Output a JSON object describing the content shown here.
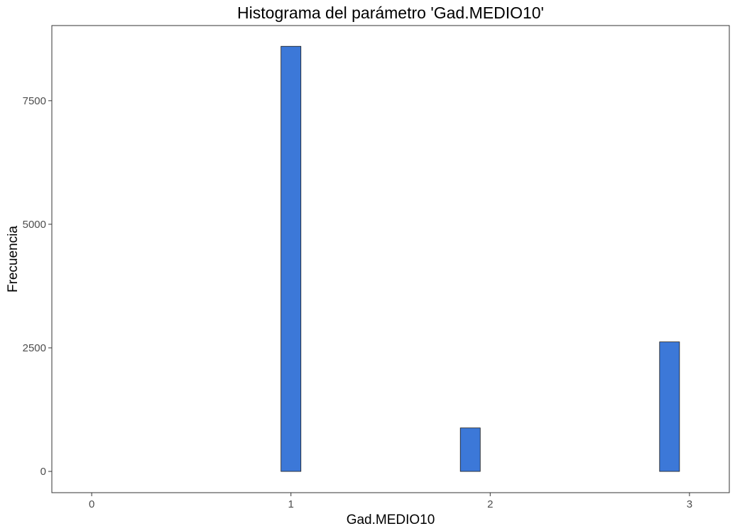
{
  "chart_data": {
    "type": "bar",
    "title": "Histograma del parámetro 'Gad.MEDIO10'",
    "xlabel": "Gad.MEDIO10",
    "ylabel": "Frecuencia",
    "x_ticks": [
      "0",
      "1",
      "2",
      "3"
    ],
    "y_ticks": [
      "0",
      "2500",
      "5000",
      "7500"
    ],
    "xlim": [
      -0.2,
      3.2
    ],
    "ylim": [
      -430,
      9020
    ],
    "bin_width": 0.1,
    "bins": [
      {
        "center": 0.0,
        "count": 0
      },
      {
        "center": 0.1,
        "count": 0
      },
      {
        "center": 0.2,
        "count": 0
      },
      {
        "center": 0.3,
        "count": 0
      },
      {
        "center": 0.4,
        "count": 0
      },
      {
        "center": 0.5,
        "count": 0
      },
      {
        "center": 0.6,
        "count": 0
      },
      {
        "center": 0.7,
        "count": 0
      },
      {
        "center": 0.8,
        "count": 0
      },
      {
        "center": 0.9,
        "count": 0
      },
      {
        "center": 1.0,
        "count": 8600
      },
      {
        "center": 1.1,
        "count": 0
      },
      {
        "center": 1.2,
        "count": 0
      },
      {
        "center": 1.3,
        "count": 0
      },
      {
        "center": 1.4,
        "count": 0
      },
      {
        "center": 1.5,
        "count": 0
      },
      {
        "center": 1.6,
        "count": 0
      },
      {
        "center": 1.7,
        "count": 0
      },
      {
        "center": 1.8,
        "count": 0
      },
      {
        "center": 1.9,
        "count": 880
      },
      {
        "center": 2.0,
        "count": 0
      },
      {
        "center": 2.1,
        "count": 0
      },
      {
        "center": 2.2,
        "count": 0
      },
      {
        "center": 2.3,
        "count": 0
      },
      {
        "center": 2.4,
        "count": 0
      },
      {
        "center": 2.5,
        "count": 0
      },
      {
        "center": 2.6,
        "count": 0
      },
      {
        "center": 2.7,
        "count": 0
      },
      {
        "center": 2.8,
        "count": 0
      },
      {
        "center": 2.9,
        "count": 2620
      }
    ],
    "grid": false,
    "legend": "none",
    "colors": {
      "bar_fill": "#3c78d8",
      "bar_stroke": "#1a1a1a",
      "panel_border": "#333333",
      "tick_text": "#4d4d4d"
    }
  }
}
